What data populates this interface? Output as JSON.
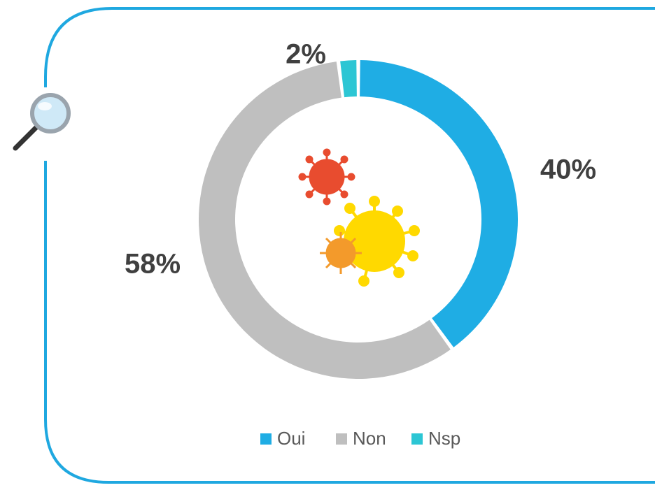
{
  "chart_data": {
    "type": "donut",
    "categories": [
      "Oui",
      "Non",
      "Nsp"
    ],
    "values": [
      40,
      58,
      2
    ],
    "value_labels": [
      "40%",
      "58%",
      "2%"
    ],
    "colors": [
      "#1fade4",
      "#bfbfbf",
      "#2cc6d4"
    ],
    "legend": "bottom"
  }
}
